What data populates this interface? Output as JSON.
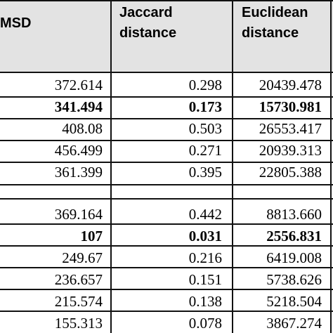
{
  "header": {
    "col1": "MSD",
    "col2_line1": "Jaccard",
    "col2_line2": "distance",
    "col3_line1": "Euclidean",
    "col3_line2": "distance"
  },
  "group1": [
    {
      "msd": "372.614",
      "jaccard": "0.298",
      "euclidean": "20439.478",
      "bold": false
    },
    {
      "msd": "341.494",
      "jaccard": "0.173",
      "euclidean": "15730.981",
      "bold": true
    },
    {
      "msd": "408.08",
      "jaccard": "0.503",
      "euclidean": "26553.417",
      "bold": false
    },
    {
      "msd": "456.499",
      "jaccard": "0.271",
      "euclidean": "20939.313",
      "bold": false
    },
    {
      "msd": "361.399",
      "jaccard": "0.395",
      "euclidean": "22805.388",
      "bold": false
    }
  ],
  "group2": [
    {
      "msd": "369.164",
      "jaccard": "0.442",
      "euclidean": "8813.660",
      "bold": false
    },
    {
      "msd": "107",
      "jaccard": "0.031",
      "euclidean": "2556.831",
      "bold": true
    },
    {
      "msd": "249.67",
      "jaccard": "0.216",
      "euclidean": "6419.008",
      "bold": false
    },
    {
      "msd": "236.657",
      "jaccard": "0.151",
      "euclidean": "5738.626",
      "bold": false
    },
    {
      "msd": "215.574",
      "jaccard": "0.138",
      "euclidean": "5218.504",
      "bold": false
    },
    {
      "msd": "155.313",
      "jaccard": "0.078",
      "euclidean": "3867.274",
      "bold": false
    }
  ]
}
